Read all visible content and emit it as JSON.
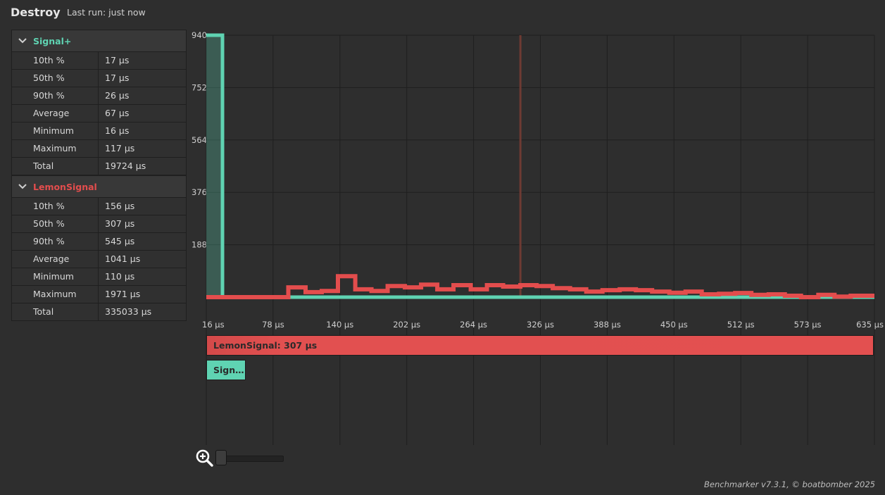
{
  "header": {
    "title": "Destroy",
    "subtitle": "Last run: just now"
  },
  "groups": [
    {
      "name": "Signal+",
      "color": "#5fd3b2",
      "stats": [
        {
          "label": "10th %",
          "value": "17 µs"
        },
        {
          "label": "50th %",
          "value": "17 µs"
        },
        {
          "label": "90th %",
          "value": "26 µs"
        },
        {
          "label": "Average",
          "value": "67 µs"
        },
        {
          "label": "Minimum",
          "value": "16 µs"
        },
        {
          "label": "Maximum",
          "value": "117 µs"
        },
        {
          "label": "Total",
          "value": "19724 µs"
        }
      ]
    },
    {
      "name": "LemonSignal",
      "color": "#e34d4d",
      "stats": [
        {
          "label": "10th %",
          "value": "156 µs"
        },
        {
          "label": "50th %",
          "value": "307 µs"
        },
        {
          "label": "90th %",
          "value": "545 µs"
        },
        {
          "label": "Average",
          "value": "1041 µs"
        },
        {
          "label": "Minimum",
          "value": "110 µs"
        },
        {
          "label": "Maximum",
          "value": "1971 µs"
        },
        {
          "label": "Total",
          "value": "335033 µs"
        }
      ]
    }
  ],
  "chart_data": {
    "type": "line",
    "ylim": [
      0,
      940
    ],
    "yticks": [
      "940",
      "752",
      "564",
      "376",
      "188"
    ],
    "xlim": [
      16,
      635
    ],
    "xticks": [
      "16 µs",
      "78 µs",
      "140 µs",
      "202 µs",
      "264 µs",
      "326 µs",
      "388 µs",
      "450 µs",
      "512 µs",
      "573 µs",
      "635 µs"
    ],
    "marker_x": 307,
    "series": [
      {
        "name": "Signal+",
        "color": "#5fd3b2",
        "x": [
          16,
          31,
          31,
          92,
          92,
          635
        ],
        "y": [
          940,
          940,
          0,
          0,
          0,
          0
        ]
      },
      {
        "name": "LemonSignal",
        "color": "#e34d4d",
        "x": [
          16,
          92,
          92,
          108,
          108,
          123,
          123,
          138,
          138,
          154,
          154,
          169,
          169,
          184,
          184,
          200,
          200,
          215,
          215,
          230,
          230,
          245,
          245,
          261,
          261,
          276,
          276,
          291,
          291,
          307,
          307,
          322,
          322,
          337,
          337,
          353,
          353,
          368,
          368,
          383,
          383,
          399,
          399,
          414,
          414,
          429,
          429,
          445,
          445,
          460,
          460,
          475,
          475,
          491,
          491,
          506,
          506,
          521,
          521,
          537,
          537,
          552,
          552,
          567,
          567,
          583,
          583,
          598,
          598,
          613,
          613,
          635
        ],
        "y": [
          0,
          0,
          35,
          35,
          18,
          18,
          22,
          22,
          75,
          75,
          28,
          28,
          22,
          22,
          40,
          40,
          35,
          35,
          45,
          45,
          28,
          28,
          43,
          43,
          28,
          28,
          43,
          43,
          38,
          38,
          43,
          43,
          40,
          40,
          32,
          32,
          28,
          28,
          20,
          20,
          25,
          25,
          28,
          28,
          25,
          25,
          20,
          20,
          16,
          16,
          20,
          20,
          10,
          10,
          12,
          12,
          15,
          15,
          8,
          8,
          10,
          10,
          5,
          5,
          0,
          0,
          8,
          8,
          2,
          2,
          5,
          5
        ]
      }
    ]
  },
  "bars": [
    {
      "label": "LemonSignal: 307 µs"
    },
    {
      "label": "Sign…"
    }
  ],
  "footer": {
    "text": "Benchmarker v7.3.1, © boatbomber 2025"
  },
  "icons": {
    "zoom": "zoom-in-icon",
    "chevron": "chevron-down-icon"
  }
}
